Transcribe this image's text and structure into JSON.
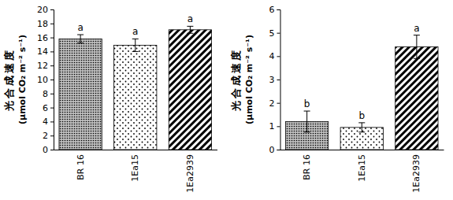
{
  "chart_data": [
    {
      "type": "bar",
      "y_label": [
        "光合成速度",
        "(μmol CO₂ m⁻² s⁻¹)"
      ],
      "categories": [
        "BR 16",
        "1Ea15",
        "1Ea2939"
      ],
      "values": [
        15.8,
        14.9,
        17.1
      ],
      "errors": [
        0.6,
        0.9,
        0.5
      ],
      "annotations": [
        "a",
        "a",
        "a"
      ],
      "color": "#000000",
      "ylim": [
        0,
        20
      ],
      "yticks": [
        0,
        2,
        4,
        6,
        8,
        10,
        12,
        14,
        16,
        18,
        20
      ]
    },
    {
      "type": "bar",
      "y_label": [
        "光合成速度",
        "(μmol CO₂ m⁻² s⁻¹)"
      ],
      "categories": [
        "BR 16",
        "1Ea15",
        "1Ea2939"
      ],
      "values": [
        1.2,
        0.95,
        4.4
      ],
      "errors": [
        0.45,
        0.2,
        0.5
      ],
      "annotations": [
        "b",
        "b",
        "a"
      ],
      "color": "#000000",
      "ylim": [
        0,
        6
      ],
      "yticks": [
        0,
        1,
        2,
        3,
        4,
        5,
        6
      ]
    }
  ]
}
